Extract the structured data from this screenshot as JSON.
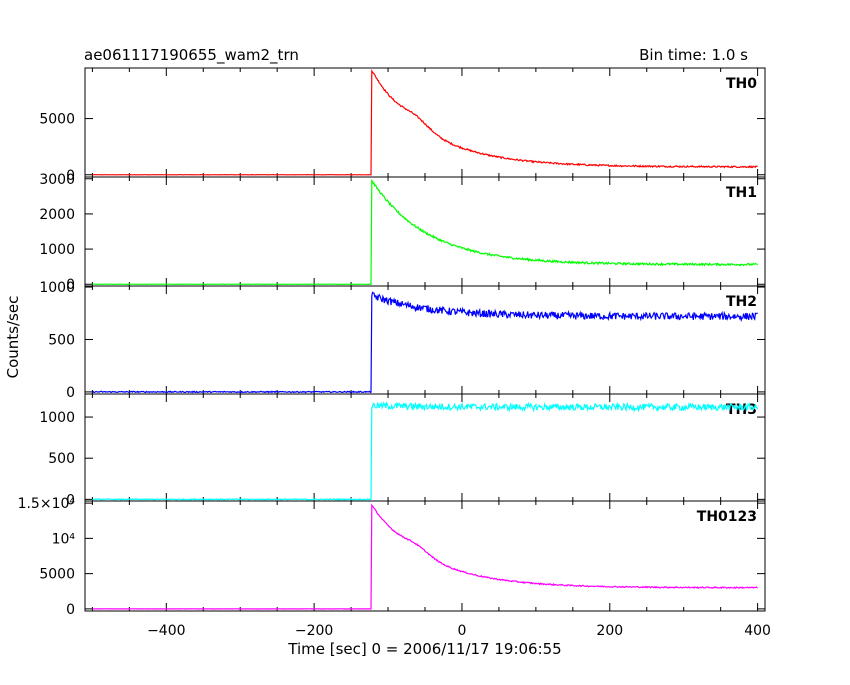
{
  "chart_data": {
    "type": "line",
    "title": "ae061117190655_wam2_trn",
    "bin_time_label": "Bin time: 1.0 s",
    "xlabel": "Time [sec] 0 = 2006/11/17 19:06:55",
    "ylabel": "Counts/sec",
    "xlim": [
      -510,
      410
    ],
    "xticks": [
      -400,
      -200,
      0,
      200,
      400
    ],
    "xtick_labels": [
      "−400",
      "−200",
      "0",
      "200",
      "400"
    ],
    "panels": [
      {
        "name": "TH0",
        "color": "#ff0000",
        "ylim": [
          -200,
          9500
        ],
        "yticks": [
          0,
          5000
        ],
        "ytick_labels": [
          "0",
          "5000"
        ],
        "baseline": 0,
        "burst_start": -122,
        "peak": 9300,
        "plateau": 700,
        "shoulder": true,
        "noise": 70
      },
      {
        "name": "TH1",
        "color": "#00ff00",
        "ylim": [
          -50,
          3050
        ],
        "yticks": [
          0,
          1000,
          2000,
          3000
        ],
        "ytick_labels": [
          "0",
          "1000",
          "2000",
          "3000"
        ],
        "baseline": 0,
        "burst_start": -122,
        "peak": 2950,
        "plateau": 560,
        "shoulder": false,
        "noise": 30
      },
      {
        "name": "TH2",
        "color": "#0000ff",
        "ylim": [
          -20,
          1010
        ],
        "yticks": [
          0,
          500,
          1000
        ],
        "ytick_labels": [
          "0",
          "500",
          "1000"
        ],
        "baseline": 0,
        "burst_start": -122,
        "peak": 920,
        "plateau": 720,
        "shoulder": false,
        "noise": 35
      },
      {
        "name": "TH3",
        "color": "#00ffff",
        "ylim": [
          -20,
          1280
        ],
        "yticks": [
          0,
          500,
          1000
        ],
        "ytick_labels": [
          "0",
          "500",
          "1000"
        ],
        "baseline": 0,
        "burst_start": -122,
        "peak": 1140,
        "plateau": 1120,
        "shoulder": false,
        "noise": 40
      },
      {
        "name": "TH0123",
        "color": "#ff00ff",
        "ylim": [
          -300,
          15300
        ],
        "yticks": [
          0,
          5000,
          10000,
          15000
        ],
        "ytick_labels": [
          "0",
          "5000",
          "10⁴",
          "1.5×10⁴"
        ],
        "baseline": 0,
        "burst_start": -122,
        "peak": 14700,
        "plateau": 3000,
        "shoulder": true,
        "noise": 90
      }
    ]
  }
}
